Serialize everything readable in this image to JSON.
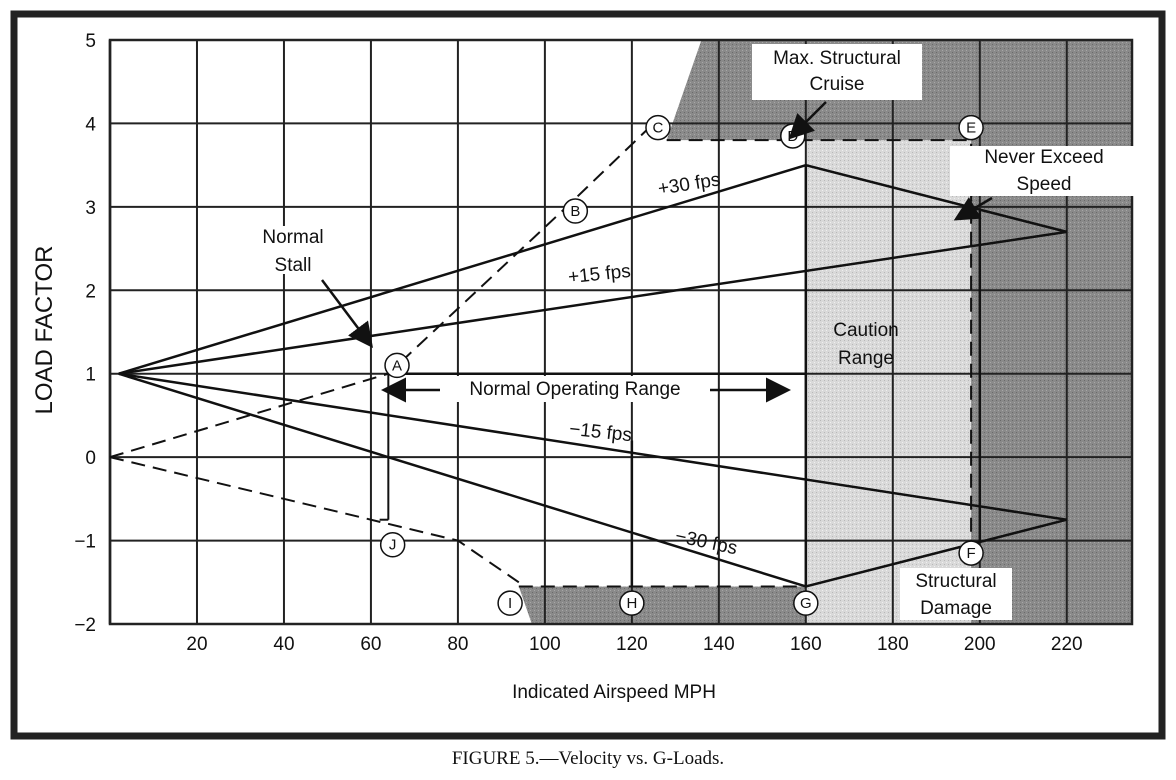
{
  "caption": "FIGURE 5.—Velocity vs. G-Loads.",
  "chart_data": {
    "type": "line",
    "xlabel": "Indicated Airspeed MPH",
    "ylabel": "LOAD FACTOR",
    "xlim": [
      0,
      235
    ],
    "ylim": [
      -2,
      5
    ],
    "x_ticks": [
      20,
      40,
      60,
      80,
      100,
      120,
      140,
      160,
      180,
      200,
      220
    ],
    "y_ticks": [
      5,
      4,
      3,
      2,
      1,
      0,
      -1,
      -2
    ],
    "y_tick_labels": [
      "5",
      "4",
      "3",
      "2",
      "1",
      "0",
      "−1",
      "−2"
    ],
    "grid": true,
    "series": [
      {
        "name": "+30 fps",
        "x": [
          2,
          160,
          220
        ],
        "y": [
          1,
          3.5,
          2.7
        ]
      },
      {
        "name": "+15 fps",
        "x": [
          2,
          220
        ],
        "y": [
          1,
          2.7
        ]
      },
      {
        "name": "−15 fps",
        "x": [
          2,
          220
        ],
        "y": [
          1,
          -0.75
        ]
      },
      {
        "name": "−30 fps",
        "x": [
          2,
          160,
          220
        ],
        "y": [
          1,
          -1.55,
          -0.75
        ]
      }
    ],
    "stall_lines": [
      {
        "x": [
          0,
          64,
          105,
          126
        ],
        "y": [
          0,
          1,
          3,
          4.05
        ]
      },
      {
        "x": [
          0,
          80,
          94
        ],
        "y": [
          0,
          -1,
          -1.5
        ]
      }
    ],
    "points": [
      {
        "label": "A",
        "x": 66,
        "y": 1.1
      },
      {
        "label": "B",
        "x": 107,
        "y": 2.95
      },
      {
        "label": "C",
        "x": 126,
        "y": 3.95
      },
      {
        "label": "D",
        "x": 157,
        "y": 3.85
      },
      {
        "label": "E",
        "x": 198,
        "y": 3.95
      },
      {
        "label": "F",
        "x": 198,
        "y": -1.15
      },
      {
        "label": "G",
        "x": 160,
        "y": -1.75
      },
      {
        "label": "H",
        "x": 120,
        "y": -1.75
      },
      {
        "label": "I",
        "x": 92,
        "y": -1.75
      },
      {
        "label": "J",
        "x": 65,
        "y": -1.05
      }
    ],
    "annotations": {
      "max_structural_cruise_1": "Max. Structural",
      "max_structural_cruise_2": "Cruise",
      "never_exceed_1": "Never Exceed",
      "never_exceed_2": "Speed",
      "normal_stall_1": "Normal",
      "normal_stall_2": "Stall",
      "caution_range_1": "Caution",
      "caution_range_2": "Range",
      "normal_operating_range": "Normal Operating Range",
      "structural_damage_1": "Structural",
      "structural_damage_2": "Damage",
      "gust_p30": "+30 fps",
      "gust_p15": "+15 fps",
      "gust_m15": "−15 fps",
      "gust_m30": "−30 fps"
    },
    "colors": {
      "structural_damage": "#808080",
      "caution_range": "#cfcfcf",
      "lines": "#111111"
    }
  }
}
